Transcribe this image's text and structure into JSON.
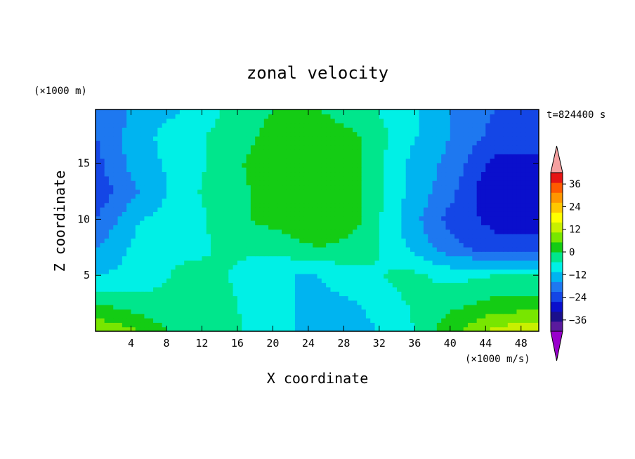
{
  "chart_data": {
    "type": "heatmap",
    "title": "zonal velocity",
    "xlabel": "X coordinate",
    "ylabel": "Z coordinate",
    "x_unit": "(×1000 m/s)",
    "y_unit": "(×1000 m)",
    "time_label": "t=824400 s",
    "xlim": [
      0,
      50
    ],
    "ylim": [
      0,
      19.8
    ],
    "x_ticks": [
      4,
      8,
      12,
      16,
      20,
      24,
      28,
      32,
      36,
      40,
      44,
      48
    ],
    "y_ticks": [
      5,
      10,
      15
    ],
    "colorbar": {
      "levels": [
        -42,
        -36,
        -30,
        -24,
        -18,
        -12,
        -6,
        0,
        6,
        12,
        18,
        24,
        30,
        36,
        42
      ],
      "tick_labels": [
        36,
        24,
        12,
        0,
        -12,
        -24,
        -36
      ],
      "colors": [
        "#9900cc",
        "#5a1a9e",
        "#1a0f8c",
        "#0a0fcc",
        "#1446e6",
        "#1e78f0",
        "#00b4f0",
        "#00f0e6",
        "#00e68c",
        "#14cc14",
        "#78e600",
        "#c8f000",
        "#ffff00",
        "#ffc800",
        "#ff9600",
        "#ff5a00",
        "#e61414",
        "#f5a0a0"
      ]
    },
    "x": [
      0,
      5,
      10,
      15,
      20,
      25,
      30,
      35,
      40,
      45,
      50
    ],
    "z": [
      0,
      2.5,
      5,
      7.5,
      10,
      12.5,
      15,
      17.5,
      19.8
    ],
    "values": [
      [
        18,
        12,
        2,
        2,
        -4,
        -8,
        -8,
        -2,
        10,
        20,
        24
      ],
      [
        6,
        2,
        2,
        1,
        -4,
        -8,
        -6,
        0,
        4,
        8,
        8
      ],
      [
        -6,
        -4,
        2,
        0,
        -6,
        -6,
        -2,
        2,
        -2,
        0,
        0
      ],
      [
        -12,
        -4,
        -2,
        1,
        2,
        6,
        4,
        -6,
        -16,
        -22,
        -22
      ],
      [
        -18,
        -6,
        -4,
        4,
        8,
        12,
        6,
        -8,
        -20,
        -26,
        -26
      ],
      [
        -22,
        -12,
        -2,
        4,
        8,
        12,
        6,
        -6,
        -16,
        -30,
        -28
      ],
      [
        -20,
        -8,
        -4,
        4,
        10,
        12,
        6,
        -6,
        -14,
        -26,
        -26
      ],
      [
        -18,
        -8,
        -2,
        2,
        8,
        10,
        6,
        -4,
        -12,
        -20,
        -20
      ],
      [
        -18,
        -10,
        -6,
        1,
        6,
        6,
        2,
        -4,
        -12,
        -18,
        -18
      ]
    ]
  }
}
